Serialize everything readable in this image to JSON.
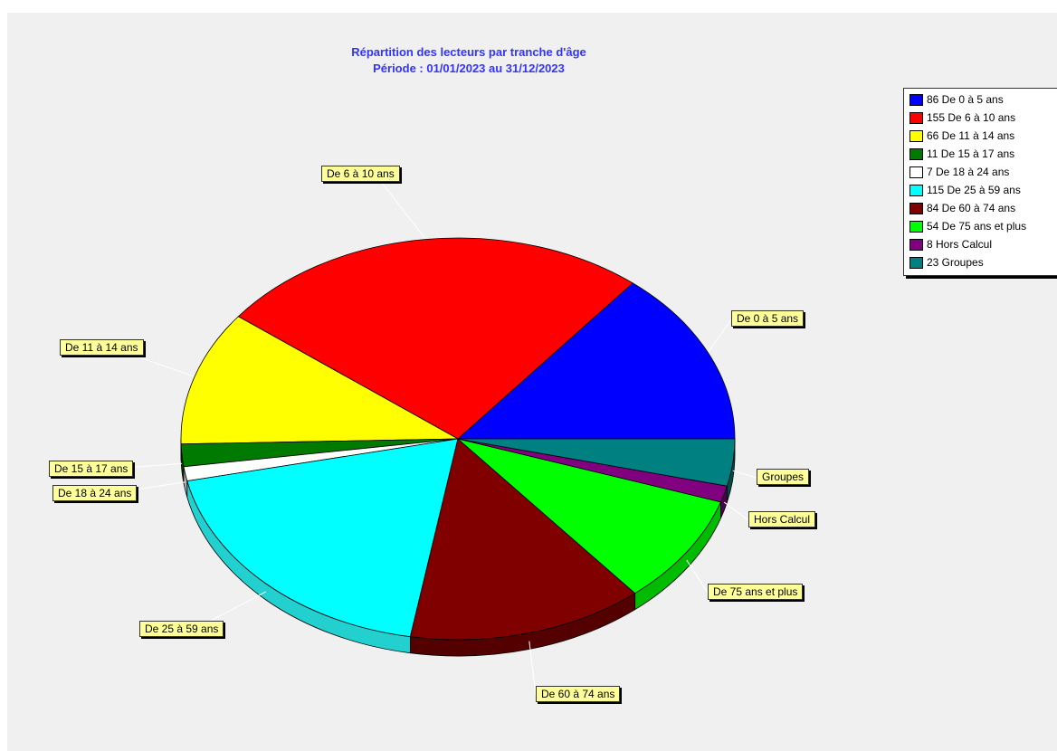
{
  "chart_data": {
    "type": "pie",
    "title": "Répartition des lecteurs par tranche d'âge",
    "subtitle": "Période : 01/01/2023 au 31/12/2023",
    "legend_position": "top-right",
    "slices": [
      {
        "label": "De 0 à 5 ans",
        "value": 86,
        "legend": "86 De 0 à 5 ans",
        "color": "#0000ff",
        "side": "#00008a"
      },
      {
        "label": "De 6 à 10 ans",
        "value": 155,
        "legend": "155 De 6 à 10 ans",
        "color": "#ff0000",
        "side": "#990000"
      },
      {
        "label": "De 11 à 14 ans",
        "value": 66,
        "legend": "66 De 11 à 14 ans",
        "color": "#ffff00",
        "side": "#a8a800"
      },
      {
        "label": "De 15 à 17 ans",
        "value": 11,
        "legend": "11 De 15 à 17 ans",
        "color": "#007a00",
        "side": "#004400"
      },
      {
        "label": "De 18 à 24 ans",
        "value": 7,
        "legend": "7 De 18 à 24 ans",
        "color": "#ffffff",
        "side": "#aaaaaa"
      },
      {
        "label": "De 25 à 59 ans",
        "value": 115,
        "legend": "115 De 25 à 59 ans",
        "color": "#00ffff",
        "side": "#22d0d0"
      },
      {
        "label": "De 60 à 74 ans",
        "value": 84,
        "legend": "84 De 60 à 74 ans",
        "color": "#800000",
        "side": "#550000"
      },
      {
        "label": "De 75 ans et plus",
        "value": 54,
        "legend": "54 De 75 ans et plus",
        "color": "#00ff00",
        "side": "#00bb00"
      },
      {
        "label": "Hors Calcul",
        "value": 8,
        "legend": "8 Hors Calcul",
        "color": "#800080",
        "side": "#4d004d"
      },
      {
        "label": "Groupes",
        "value": 23,
        "legend": "23 Groupes",
        "color": "#008080",
        "side": "#004d4d"
      }
    ]
  }
}
